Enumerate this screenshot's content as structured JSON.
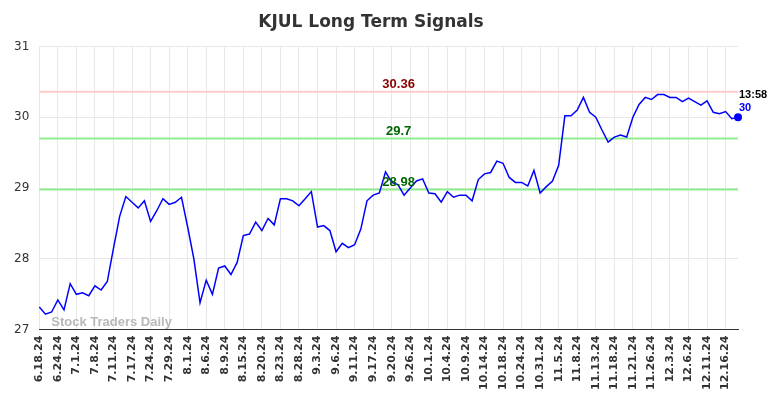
{
  "chart_data": {
    "type": "line",
    "title": "KJUL Long Term Signals",
    "categories": [
      "6.18.24",
      null,
      null,
      "6.24.24",
      null,
      null,
      "7.1.24",
      null,
      null,
      "7.8.24",
      null,
      null,
      "7.11.24",
      null,
      null,
      "7.17.24",
      null,
      null,
      "7.24.24",
      null,
      null,
      "7.29.24",
      null,
      null,
      "8.1.24",
      null,
      null,
      "8.6.24",
      null,
      null,
      "8.9.24",
      null,
      null,
      "8.15.24",
      null,
      null,
      "8.20.24",
      null,
      null,
      "8.23.24",
      null,
      null,
      "8.28.24",
      null,
      null,
      "9.3.24",
      null,
      null,
      "9.6.24",
      null,
      null,
      "9.11.24",
      null,
      null,
      "9.17.24",
      null,
      null,
      "9.20.24",
      null,
      null,
      "9.26.24",
      null,
      null,
      "10.1.24",
      null,
      null,
      "10.4.24",
      null,
      null,
      "10.9.24",
      null,
      null,
      "10.14.24",
      null,
      null,
      "10.18.24",
      null,
      null,
      "10.24.24",
      null,
      null,
      "10.31.24",
      null,
      null,
      "11.5.24",
      null,
      null,
      "11.8.24",
      null,
      null,
      "11.13.24",
      null,
      null,
      "11.18.24",
      null,
      null,
      "11.21.24",
      null,
      null,
      "11.26.24",
      null,
      null,
      "12.3.24",
      null,
      null,
      "12.6.24",
      null,
      null,
      "12.11.24",
      null,
      null,
      "12.16.24",
      null,
      null
    ],
    "values": [
      27.32,
      27.22,
      27.25,
      27.42,
      27.28,
      27.65,
      27.5,
      27.52,
      27.48,
      27.62,
      27.56,
      27.68,
      28.15,
      28.6,
      28.88,
      28.8,
      28.72,
      28.82,
      28.53,
      28.68,
      28.85,
      28.77,
      28.8,
      28.87,
      28.45,
      28.0,
      27.38,
      27.7,
      27.5,
      27.87,
      27.9,
      27.78,
      27.95,
      28.33,
      28.35,
      28.52,
      28.4,
      28.57,
      28.48,
      28.85,
      28.85,
      28.82,
      28.75,
      28.85,
      28.95,
      28.45,
      28.47,
      28.4,
      28.1,
      28.22,
      28.16,
      28.2,
      28.42,
      28.82,
      28.9,
      28.93,
      29.23,
      29.08,
      29.05,
      28.9,
      29.0,
      29.1,
      29.13,
      28.93,
      28.92,
      28.8,
      28.95,
      28.87,
      28.9,
      28.9,
      28.82,
      29.12,
      29.2,
      29.22,
      29.38,
      29.35,
      29.15,
      29.08,
      29.08,
      29.03,
      29.25,
      28.93,
      29.02,
      29.1,
      29.32,
      30.02,
      30.02,
      30.1,
      30.28,
      30.07,
      30.0,
      29.82,
      29.65,
      29.72,
      29.75,
      29.72,
      30.0,
      30.18,
      30.28,
      30.25,
      30.32,
      30.32,
      30.28,
      30.28,
      30.22,
      30.27,
      30.22,
      30.17,
      30.23,
      30.07,
      30.05,
      30.08,
      29.98,
      30.0
    ],
    "color": "#0000ff",
    "ylim": [
      27,
      31
    ],
    "yticks": [
      27,
      28,
      29,
      30,
      31
    ],
    "grid": true,
    "levels": [
      {
        "value": 30.36,
        "label": "30.36",
        "color": "#8b0000"
      },
      {
        "value": 29.7,
        "label": "29.7",
        "color": "#006400"
      },
      {
        "value": 28.98,
        "label": "28.98",
        "color": "#006400"
      }
    ],
    "last_point": {
      "time": "13:58",
      "label": "30",
      "value": 30.0
    },
    "watermark": "Stock Traders Daily"
  }
}
